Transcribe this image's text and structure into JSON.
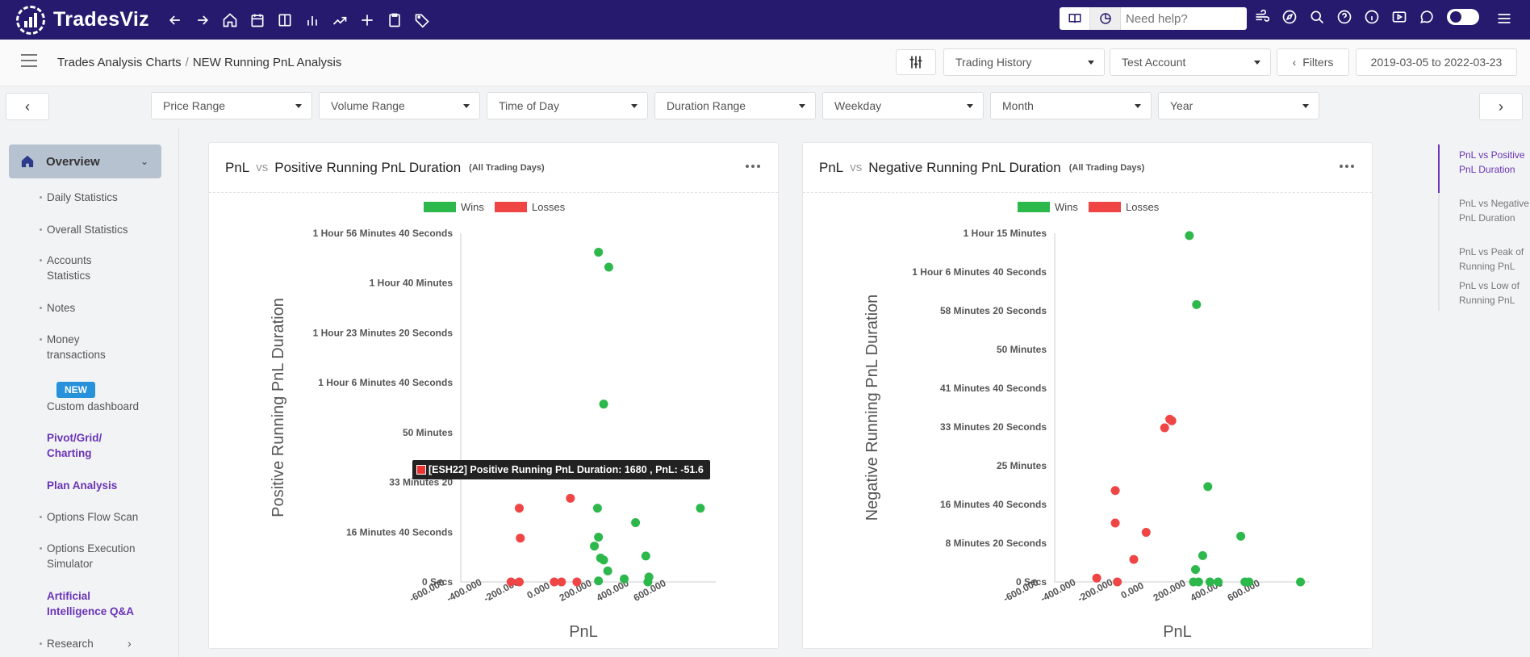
{
  "app": {
    "name": "TradesViz",
    "help_placeholder": "Need help?"
  },
  "breadcrumb": {
    "parent": "Trades Analysis Charts",
    "separator": "/",
    "current": "NEW Running PnL Analysis"
  },
  "toolbar": {
    "history_select": "Trading History",
    "account_select": "Test Account",
    "filters_label": "Filters",
    "date_range": "2019-03-05 to 2022-03-23"
  },
  "filters": [
    "Price Range",
    "Volume Range",
    "Time of Day",
    "Duration Range",
    "Weekday",
    "Month",
    "Year"
  ],
  "sidebar": {
    "overview": "Overview",
    "items": [
      {
        "label": "Daily Statistics"
      },
      {
        "label": "Overall Statistics"
      },
      {
        "label": "Accounts Statistics"
      },
      {
        "label": "Notes"
      },
      {
        "label": "Money transactions"
      },
      {
        "label": "Custom dashboard"
      },
      {
        "label": "Pivot/Grid/ Charting"
      },
      {
        "label": "Plan Analysis"
      },
      {
        "label": "Options Flow Scan"
      },
      {
        "label": "Options Execution Simulator"
      },
      {
        "label": "Artificial Intelligence Q&A"
      },
      {
        "label": "Research"
      }
    ],
    "new_badge": "NEW"
  },
  "toc": [
    "PnL vs Positive PnL Duration",
    "PnL vs Negative PnL Duration",
    "PnL vs Peak of Running PnL",
    "PnL vs Low of Running PnL"
  ],
  "colors": {
    "wins": "#2db84c",
    "losses": "#f04545",
    "nav": "#251a6e",
    "accent": "#6a34b6"
  },
  "tooltip": {
    "text": "[ESH22] Positive Running PnL Duration: 1680 , PnL: -51.6"
  },
  "chart_data": [
    {
      "type": "scatter",
      "title_left": "PnL",
      "vs": "vs",
      "title": "Positive Running PnL Duration",
      "subtitle": "(All Trading Days)",
      "xlabel": "PnL",
      "ylabel": "Positive Running PnL Duration",
      "legend": [
        "Wins",
        "Losses"
      ],
      "xticks": [
        "-600.000",
        "-400.000",
        "-200.000",
        "0.000",
        "200.000",
        "400.000",
        "600.000"
      ],
      "yticks": [
        "0 Secs",
        "16 Minutes 40 Seconds",
        "33 Minutes 20",
        "50 Minutes",
        "1 Hour 6 Minutes 40 Seconds",
        "1 Hour 23 Minutes 20 Seconds",
        "1 Hour 40 Minutes",
        "1 Hour 56 Minutes 40 Seconds"
      ],
      "xlim": [
        -600,
        600
      ],
      "ylim": [
        0,
        7000
      ],
      "series": [
        {
          "name": "Wins",
          "points": [
            [
              85,
              6620
            ],
            [
              135,
              6320
            ],
            [
              110,
              3570
            ],
            [
              80,
              1480
            ],
            [
              265,
              1190
            ],
            [
              580,
              1480
            ],
            [
              85,
              900
            ],
            [
              65,
              720
            ],
            [
              110,
              440
            ],
            [
              95,
              480
            ],
            [
              315,
              520
            ],
            [
              130,
              220
            ],
            [
              210,
              60
            ],
            [
              330,
              100
            ],
            [
              325,
              0
            ],
            [
              85,
              20
            ]
          ]
        },
        {
          "name": "Losses",
          "points": [
            [
              -300,
              1480
            ],
            [
              -295,
              880
            ],
            [
              -340,
              0
            ],
            [
              -300,
              0
            ],
            [
              -130,
              0
            ],
            [
              -95,
              0
            ],
            [
              -20,
              0
            ],
            [
              -51.6,
              1680
            ]
          ]
        }
      ]
    },
    {
      "type": "scatter",
      "title_left": "PnL",
      "vs": "vs",
      "title": "Negative Running PnL Duration",
      "subtitle": "(All Trading Days)",
      "xlabel": "PnL",
      "ylabel": "Negative Running PnL Duration",
      "legend": [
        "Wins",
        "Losses"
      ],
      "xticks": [
        "-600.000",
        "-400.000",
        "-200.000",
        "0.000",
        "200.000",
        "400.000",
        "600.000"
      ],
      "yticks": [
        "0 Secs",
        "8 Minutes 20 Seconds",
        "16 Minutes 40 Seconds",
        "25 Minutes",
        "33 Minutes 20 Seconds",
        "41 Minutes 40 Seconds",
        "50 Minutes",
        "58 Minutes 20 Seconds",
        "1 Hour 6 Minutes 40 Seconds",
        "1 Hour 15 Minutes"
      ],
      "xlim": [
        -600,
        600
      ],
      "ylim": [
        0,
        4500
      ],
      "series": [
        {
          "name": "Wins",
          "points": [
            [
              70,
              4470
            ],
            [
              105,
              3580
            ],
            [
              160,
              1230
            ],
            [
              320,
              590
            ],
            [
              135,
              340
            ],
            [
              100,
              160
            ],
            [
              90,
              0
            ],
            [
              115,
              0
            ],
            [
              170,
              0
            ],
            [
              210,
              0
            ],
            [
              340,
              0
            ],
            [
              360,
              0
            ],
            [
              610,
              0
            ]
          ]
        },
        {
          "name": "Losses",
          "points": [
            [
              -380,
              50
            ],
            [
              -290,
              1180
            ],
            [
              -290,
              760
            ],
            [
              -50,
              1990
            ],
            [
              -25,
              2100
            ],
            [
              -15,
              2080
            ],
            [
              -140,
              640
            ],
            [
              -200,
              290
            ],
            [
              -280,
              0
            ]
          ]
        }
      ]
    }
  ]
}
